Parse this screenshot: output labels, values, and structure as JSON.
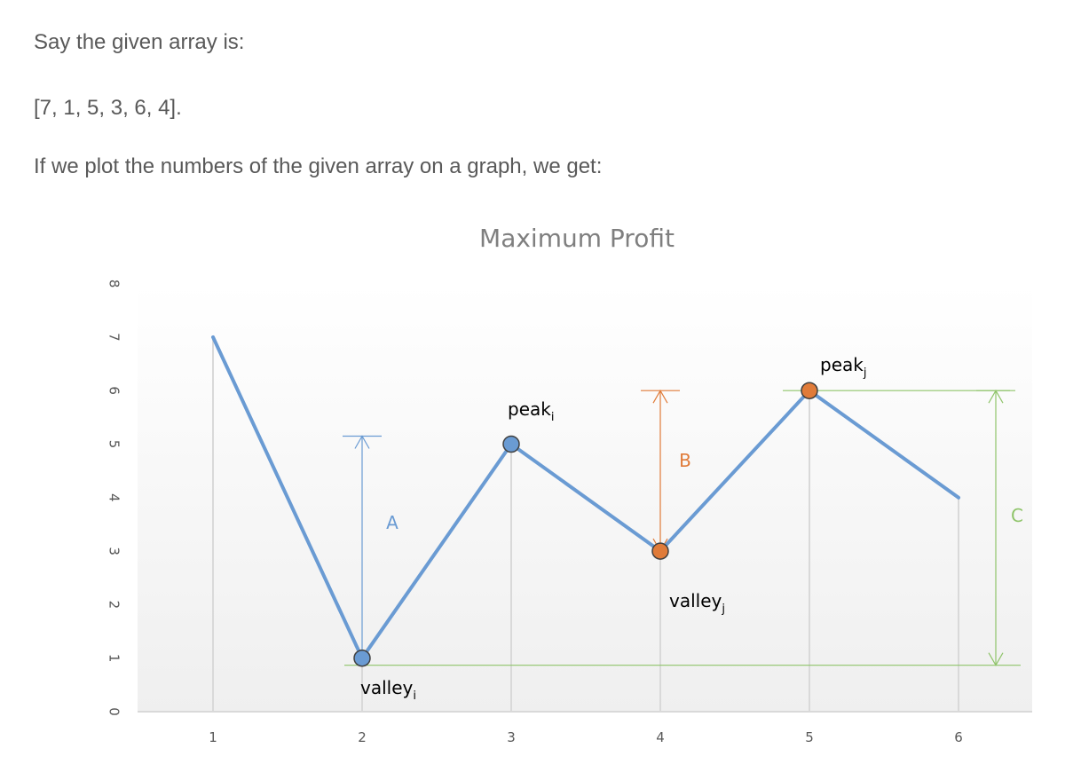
{
  "text": {
    "intro": "Say the given array is:",
    "array": "[7, 1, 5, 3, 6, 4].",
    "plot_intro": "If we plot the numbers of the given array on a graph, we get:"
  },
  "chart_data": {
    "type": "line",
    "title": "Maximum Profit",
    "xlabel": "",
    "ylabel": "",
    "x": [
      1,
      2,
      3,
      4,
      5,
      6
    ],
    "y_ticks": [
      0,
      1,
      2,
      3,
      4,
      5,
      6,
      7,
      8
    ],
    "ylim": [
      0,
      8
    ],
    "grid": "vertical",
    "series": [
      {
        "values": [
          7,
          1,
          5,
          3,
          6,
          4
        ],
        "color": "#6a9bd3"
      }
    ],
    "markers": [
      {
        "x": 2,
        "y": 1,
        "color": "#6a9bd3"
      },
      {
        "x": 3,
        "y": 5,
        "color": "#6a9bd3"
      },
      {
        "x": 4,
        "y": 3,
        "color": "#e07b39"
      },
      {
        "x": 5,
        "y": 6,
        "color": "#e07b39"
      }
    ],
    "annotations": [
      {
        "base": "valley",
        "sub": "i",
        "x": 2,
        "y": 1
      },
      {
        "base": "peak",
        "sub": "i",
        "x": 3,
        "y": 5
      },
      {
        "base": "valley",
        "sub": "j",
        "x": 4,
        "y": 3
      },
      {
        "base": "peak",
        "sub": "j",
        "x": 5,
        "y": 6
      }
    ],
    "measures": [
      {
        "label": "A",
        "x": 2,
        "from": 1,
        "to": 5,
        "color": "#6a9bd3"
      },
      {
        "label": "B",
        "x": 4,
        "from": 3,
        "to": 6,
        "color": "#e07b39"
      },
      {
        "label": "C",
        "x": 6.25,
        "from": 1,
        "to": 6,
        "color": "#8fc46a"
      }
    ],
    "colors": {
      "line": "#6a9bd3",
      "orange": "#e07b39",
      "green": "#8fc46a",
      "grid": "#d9d9d9",
      "tick": "#595959"
    }
  }
}
